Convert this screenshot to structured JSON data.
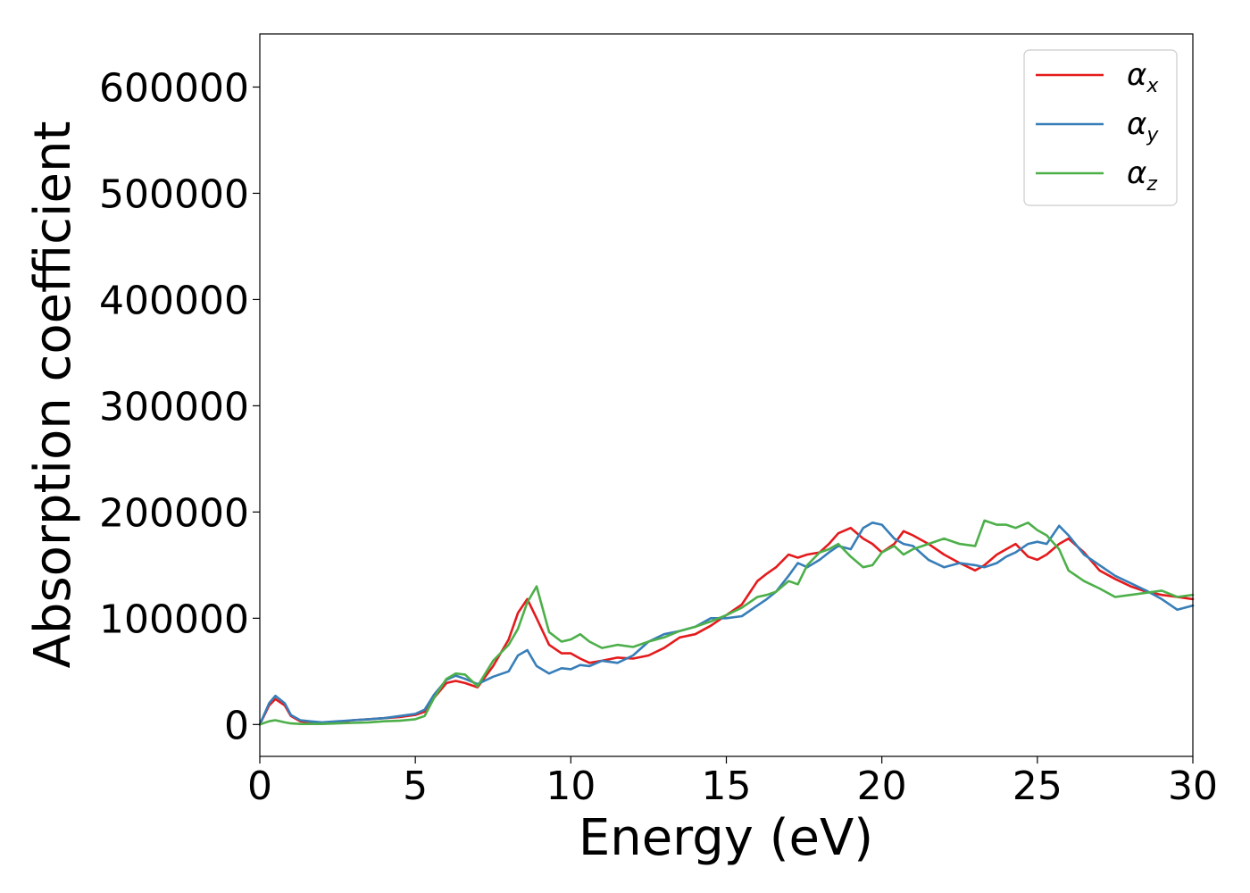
{
  "chart_data": {
    "type": "line",
    "title": "",
    "xlabel": "Energy (eV)",
    "ylabel": "Absorption coefficient",
    "xlim": [
      0,
      30
    ],
    "ylim": [
      -30000,
      650000
    ],
    "xticks": [
      0,
      5,
      10,
      15,
      20,
      25,
      30
    ],
    "yticks": [
      0,
      100000,
      200000,
      300000,
      400000,
      500000,
      600000
    ],
    "grid": false,
    "legend_position": "top-right",
    "legend": [
      {
        "symbol": "α",
        "subscript": "x"
      },
      {
        "symbol": "α",
        "subscript": "y"
      },
      {
        "symbol": "α",
        "subscript": "z"
      }
    ],
    "series": [
      {
        "color": "#e41a1c",
        "x": [
          0,
          0.3,
          0.5,
          0.8,
          1.0,
          1.3,
          1.6,
          2.0,
          2.5,
          3.0,
          3.5,
          4.0,
          4.5,
          5.0,
          5.3,
          5.6,
          6.0,
          6.3,
          6.6,
          7.0,
          7.5,
          8.0,
          8.3,
          8.6,
          8.9,
          9.3,
          9.7,
          10.0,
          10.3,
          10.6,
          11.0,
          11.5,
          12.0,
          12.5,
          13.0,
          13.5,
          14.0,
          14.5,
          15.0,
          15.5,
          16.0,
          16.3,
          16.6,
          17.0,
          17.3,
          17.6,
          18.0,
          18.3,
          18.6,
          19.0,
          19.4,
          19.7,
          20.0,
          20.4,
          20.7,
          21.0,
          21.5,
          22.0,
          22.5,
          23.0,
          23.3,
          23.7,
          24.0,
          24.3,
          24.7,
          25.0,
          25.3,
          25.7,
          26.0,
          26.5,
          27.0,
          27.5,
          28.0,
          28.5,
          29.0,
          29.5,
          30.0
        ],
        "y": [
          0,
          18000,
          24000,
          18000,
          8000,
          3000,
          2000,
          1000,
          2000,
          4000,
          5000,
          6000,
          7000,
          9000,
          12000,
          25000,
          39000,
          41000,
          39000,
          35000,
          55000,
          80000,
          105000,
          118000,
          100000,
          75000,
          67000,
          67000,
          62000,
          58000,
          60000,
          63000,
          62000,
          65000,
          72000,
          82000,
          85000,
          93000,
          103000,
          113000,
          135000,
          142000,
          148000,
          160000,
          157000,
          160000,
          162000,
          170000,
          180000,
          185000,
          175000,
          170000,
          162000,
          170000,
          182000,
          178000,
          170000,
          160000,
          152000,
          145000,
          150000,
          160000,
          165000,
          170000,
          158000,
          155000,
          160000,
          170000,
          175000,
          162000,
          145000,
          137000,
          130000,
          125000,
          122000,
          120000,
          118000
        ]
      },
      {
        "color": "#377eb8",
        "x": [
          0,
          0.3,
          0.5,
          0.8,
          1.0,
          1.3,
          1.6,
          2.0,
          2.5,
          3.0,
          3.5,
          4.0,
          4.5,
          5.0,
          5.3,
          5.6,
          6.0,
          6.3,
          6.6,
          7.0,
          7.5,
          8.0,
          8.3,
          8.6,
          8.9,
          9.3,
          9.7,
          10.0,
          10.3,
          10.6,
          11.0,
          11.5,
          12.0,
          12.5,
          13.0,
          13.5,
          14.0,
          14.5,
          15.0,
          15.5,
          16.0,
          16.3,
          16.6,
          17.0,
          17.3,
          17.6,
          18.0,
          18.3,
          18.6,
          19.0,
          19.4,
          19.7,
          20.0,
          20.4,
          20.7,
          21.0,
          21.5,
          22.0,
          22.5,
          23.0,
          23.3,
          23.7,
          24.0,
          24.3,
          24.7,
          25.0,
          25.3,
          25.7,
          26.0,
          26.5,
          27.0,
          27.5,
          28.0,
          28.5,
          29.0,
          29.5,
          30.0
        ],
        "y": [
          0,
          20000,
          27000,
          20000,
          9000,
          4000,
          3000,
          2000,
          3000,
          4000,
          5000,
          6000,
          8000,
          10000,
          14000,
          28000,
          42000,
          46000,
          43000,
          38000,
          45000,
          50000,
          65000,
          70000,
          55000,
          48000,
          53000,
          52000,
          56000,
          55000,
          60000,
          58000,
          65000,
          78000,
          85000,
          88000,
          92000,
          100000,
          100000,
          102000,
          112000,
          118000,
          125000,
          140000,
          152000,
          148000,
          155000,
          162000,
          168000,
          165000,
          185000,
          190000,
          188000,
          175000,
          170000,
          168000,
          155000,
          148000,
          152000,
          150000,
          148000,
          152000,
          158000,
          162000,
          170000,
          172000,
          170000,
          187000,
          178000,
          160000,
          150000,
          140000,
          133000,
          126000,
          118000,
          108000,
          112000
        ]
      },
      {
        "color": "#4daf4a",
        "x": [
          0,
          0.3,
          0.5,
          0.8,
          1.0,
          1.3,
          1.6,
          2.0,
          2.5,
          3.0,
          3.5,
          4.0,
          4.5,
          5.0,
          5.3,
          5.6,
          6.0,
          6.3,
          6.6,
          7.0,
          7.5,
          8.0,
          8.3,
          8.6,
          8.9,
          9.3,
          9.7,
          10.0,
          10.3,
          10.6,
          11.0,
          11.5,
          12.0,
          12.5,
          13.0,
          13.5,
          14.0,
          14.5,
          15.0,
          15.5,
          16.0,
          16.3,
          16.6,
          17.0,
          17.3,
          17.6,
          18.0,
          18.3,
          18.6,
          19.0,
          19.4,
          19.7,
          20.0,
          20.4,
          20.7,
          21.0,
          21.5,
          22.0,
          22.5,
          23.0,
          23.3,
          23.7,
          24.0,
          24.3,
          24.7,
          25.0,
          25.3,
          25.7,
          26.0,
          26.5,
          27.0,
          27.5,
          28.0,
          28.5,
          29.0,
          29.5,
          30.0
        ],
        "y": [
          0,
          3000,
          4000,
          2000,
          1000,
          500,
          500,
          500,
          1000,
          1500,
          2000,
          3000,
          3500,
          5000,
          8000,
          25000,
          43000,
          48000,
          47000,
          36000,
          60000,
          75000,
          90000,
          115000,
          130000,
          87000,
          78000,
          80000,
          85000,
          78000,
          72000,
          75000,
          73000,
          78000,
          82000,
          88000,
          92000,
          97000,
          103000,
          110000,
          120000,
          122000,
          125000,
          135000,
          132000,
          150000,
          162000,
          165000,
          170000,
          158000,
          148000,
          150000,
          162000,
          168000,
          160000,
          165000,
          170000,
          175000,
          170000,
          168000,
          192000,
          188000,
          188000,
          185000,
          190000,
          183000,
          178000,
          165000,
          145000,
          135000,
          128000,
          120000,
          122000,
          124000,
          126000,
          120000,
          122000
        ]
      }
    ]
  }
}
